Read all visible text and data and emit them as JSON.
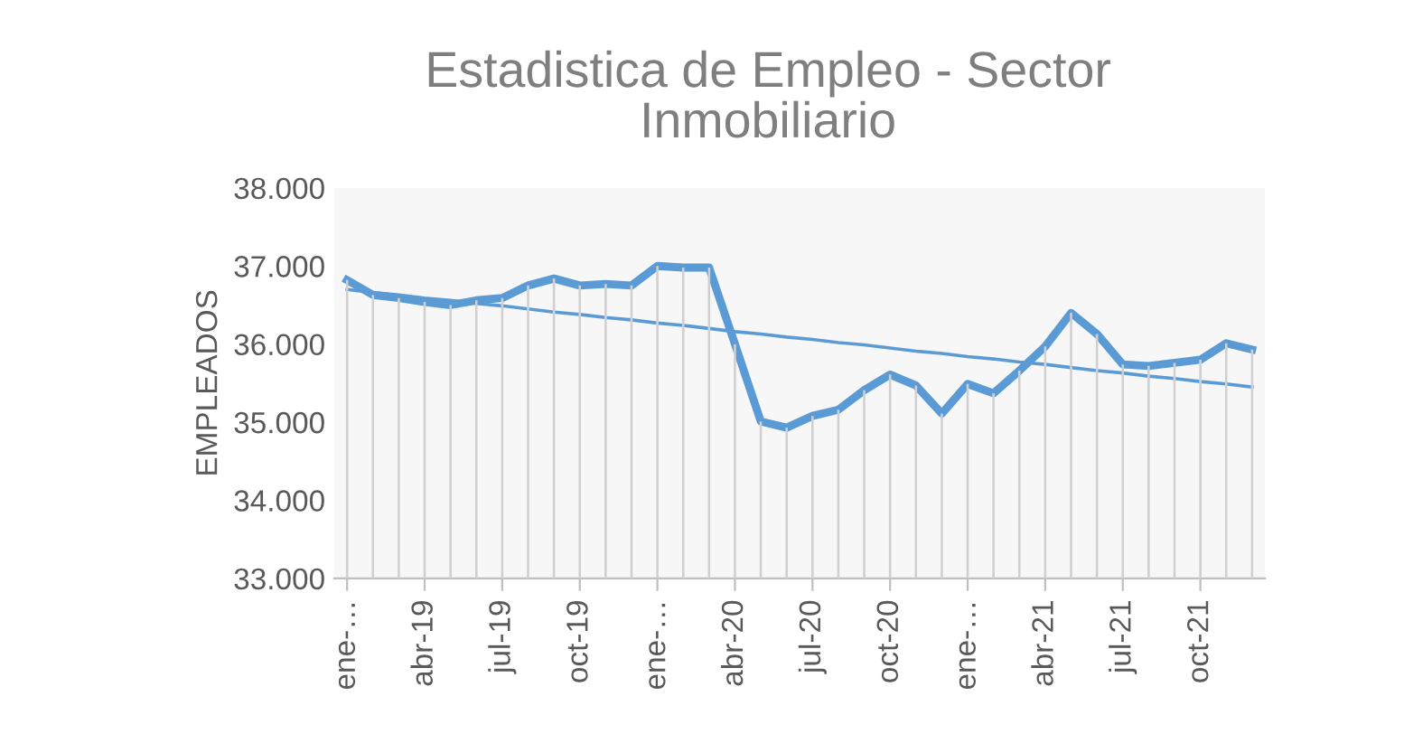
{
  "chart_data": {
    "type": "line",
    "title": "Estadistica de Empleo - Sector Inmobiliario",
    "ylabel": "EMPLEADOS",
    "categories": [
      "ene-…",
      null,
      null,
      "abr-19",
      null,
      null,
      "jul-19",
      null,
      null,
      "oct-19",
      null,
      null,
      "ene-…",
      null,
      null,
      "abr-20",
      null,
      null,
      "jul-20",
      null,
      null,
      "oct-20",
      null,
      null,
      "ene-…",
      null,
      null,
      "abr-21",
      null,
      null,
      "jul-21",
      null,
      null,
      "oct-21",
      null,
      null
    ],
    "series": [
      {
        "type": "bar",
        "color": "#d0d0d0",
        "values": [
          36820,
          36630,
          36590,
          36540,
          36500,
          36560,
          36590,
          36750,
          36840,
          36750,
          36770,
          36750,
          37000,
          36980,
          36980,
          36000,
          35010,
          34930,
          35080,
          35160,
          35410,
          35610,
          35470,
          35110,
          35490,
          35370,
          35660,
          35970,
          36400,
          36130,
          35740,
          35720,
          35760,
          35800,
          36010,
          35930
        ]
      },
      {
        "color": "#5b9bd5",
        "values": [
          36820,
          36630,
          36590,
          36540,
          36500,
          36560,
          36590,
          36750,
          36840,
          36750,
          36770,
          36750,
          37000,
          36980,
          36980,
          36000,
          35010,
          34930,
          35080,
          35160,
          35410,
          35610,
          35470,
          35110,
          35490,
          35370,
          35660,
          35970,
          36400,
          36130,
          35740,
          35720,
          35760,
          35800,
          36010,
          35930
        ]
      },
      {
        "color": "#5b9bd5",
        "values": [
          36700,
          36660,
          36630,
          36590,
          36560,
          36520,
          36490,
          36450,
          36410,
          36380,
          36340,
          36310,
          36270,
          36240,
          36200,
          36160,
          36130,
          36090,
          36060,
          36020,
          35990,
          35950,
          35910,
          35880,
          35840,
          35810,
          35770,
          35740,
          35700,
          35660,
          35630,
          35590,
          35560,
          35520,
          35490,
          35450
        ]
      }
    ],
    "ylim": [
      33000,
      38000
    ],
    "yticks": [
      {
        "value": 33000,
        "label": "33.000"
      },
      {
        "value": 34000,
        "label": "34.000"
      },
      {
        "value": 35000,
        "label": "35.000"
      },
      {
        "value": 36000,
        "label": "36.000"
      },
      {
        "value": 37000,
        "label": "37.000"
      },
      {
        "value": 38000,
        "label": "38.000"
      }
    ],
    "grid": false,
    "legend": false,
    "marker": "none",
    "line_style": "solid"
  }
}
